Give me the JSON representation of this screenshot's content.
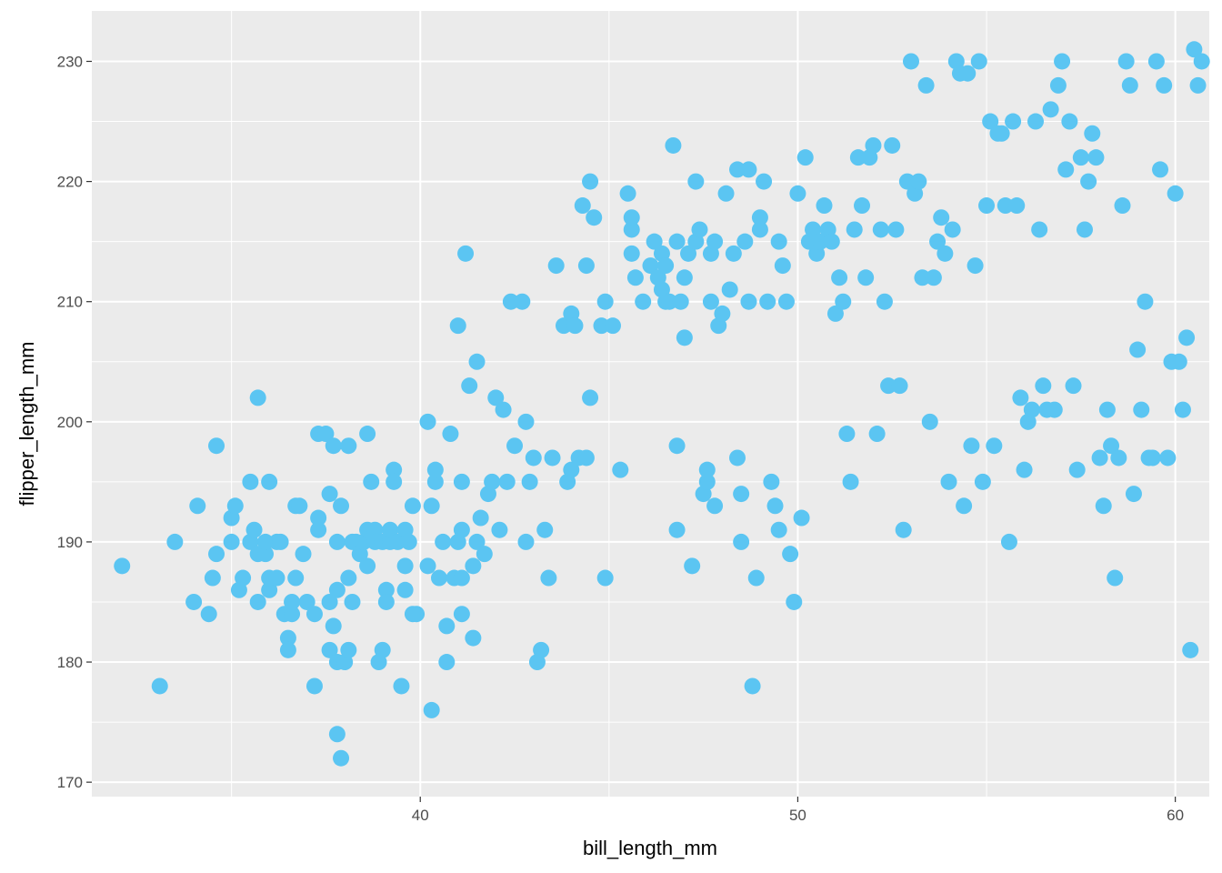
{
  "chart_data": {
    "type": "scatter",
    "xlabel": "bill_length_mm",
    "ylabel": "flipper_length_mm",
    "xlim": [
      31.3,
      60.9
    ],
    "ylim": [
      168.8,
      234.2
    ],
    "x_ticks": [
      40,
      50,
      60
    ],
    "y_ticks": [
      170,
      180,
      190,
      200,
      210,
      220,
      230
    ],
    "grid": true,
    "point_color": "#5BC5F2",
    "panel_color": "#EBEBEB",
    "points": [
      [
        32.1,
        188
      ],
      [
        33.1,
        178
      ],
      [
        33.5,
        190
      ],
      [
        34.0,
        185
      ],
      [
        34.1,
        193
      ],
      [
        34.4,
        184
      ],
      [
        34.5,
        187
      ],
      [
        34.6,
        189
      ],
      [
        34.6,
        198
      ],
      [
        35.0,
        190
      ],
      [
        35.0,
        192
      ],
      [
        35.1,
        193
      ],
      [
        35.2,
        186
      ],
      [
        35.3,
        187
      ],
      [
        35.5,
        190
      ],
      [
        35.5,
        195
      ],
      [
        35.6,
        191
      ],
      [
        35.7,
        189
      ],
      [
        35.7,
        185
      ],
      [
        35.7,
        202
      ],
      [
        35.9,
        189
      ],
      [
        35.9,
        190
      ],
      [
        36.0,
        186
      ],
      [
        36.0,
        187
      ],
      [
        36.0,
        195
      ],
      [
        36.2,
        187
      ],
      [
        36.2,
        190
      ],
      [
        36.3,
        190
      ],
      [
        36.4,
        184
      ],
      [
        36.5,
        182
      ],
      [
        36.5,
        181
      ],
      [
        36.6,
        184
      ],
      [
        36.6,
        185
      ],
      [
        36.7,
        187
      ],
      [
        36.7,
        193
      ],
      [
        36.8,
        193
      ],
      [
        36.9,
        189
      ],
      [
        37.0,
        185
      ],
      [
        37.2,
        184
      ],
      [
        37.2,
        178
      ],
      [
        37.3,
        192
      ],
      [
        37.3,
        191
      ],
      [
        37.3,
        199
      ],
      [
        37.5,
        199
      ],
      [
        37.6,
        185
      ],
      [
        37.6,
        181
      ],
      [
        37.6,
        194
      ],
      [
        37.7,
        183
      ],
      [
        37.7,
        198
      ],
      [
        37.8,
        180
      ],
      [
        37.8,
        174
      ],
      [
        37.8,
        190
      ],
      [
        37.8,
        186
      ],
      [
        37.9,
        172
      ],
      [
        37.9,
        193
      ],
      [
        38.0,
        180
      ],
      [
        38.1,
        181
      ],
      [
        38.1,
        187
      ],
      [
        38.1,
        198
      ],
      [
        38.2,
        190
      ],
      [
        38.2,
        185
      ],
      [
        38.3,
        190
      ],
      [
        38.4,
        189
      ],
      [
        38.5,
        190
      ],
      [
        38.6,
        188
      ],
      [
        38.6,
        199
      ],
      [
        38.6,
        191
      ],
      [
        38.7,
        195
      ],
      [
        38.8,
        191
      ],
      [
        38.8,
        190
      ],
      [
        38.9,
        180
      ],
      [
        39.0,
        190
      ],
      [
        39.0,
        181
      ],
      [
        39.1,
        186
      ],
      [
        39.1,
        185
      ],
      [
        39.2,
        190
      ],
      [
        39.2,
        191
      ],
      [
        39.3,
        196
      ],
      [
        39.3,
        195
      ],
      [
        39.4,
        190
      ],
      [
        39.5,
        178
      ],
      [
        39.6,
        188
      ],
      [
        39.6,
        186
      ],
      [
        39.6,
        191
      ],
      [
        39.7,
        190
      ],
      [
        39.8,
        193
      ],
      [
        39.8,
        184
      ],
      [
        39.9,
        184
      ],
      [
        40.2,
        188
      ],
      [
        40.2,
        200
      ],
      [
        40.3,
        176
      ],
      [
        40.3,
        193
      ],
      [
        40.4,
        195
      ],
      [
        40.4,
        196
      ],
      [
        40.5,
        187
      ],
      [
        40.6,
        190
      ],
      [
        40.7,
        180
      ],
      [
        40.7,
        183
      ],
      [
        40.8,
        199
      ],
      [
        40.9,
        187
      ],
      [
        41.0,
        208
      ],
      [
        41.0,
        190
      ],
      [
        41.1,
        195
      ],
      [
        41.1,
        191
      ],
      [
        41.1,
        184
      ],
      [
        41.1,
        187
      ],
      [
        41.2,
        214
      ],
      [
        41.3,
        203
      ],
      [
        41.4,
        182
      ],
      [
        41.4,
        188
      ],
      [
        41.5,
        205
      ],
      [
        41.5,
        190
      ],
      [
        41.6,
        192
      ],
      [
        41.7,
        189
      ],
      [
        41.8,
        194
      ],
      [
        41.9,
        195
      ],
      [
        42.0,
        202
      ],
      [
        42.1,
        191
      ],
      [
        42.2,
        201
      ],
      [
        42.3,
        195
      ],
      [
        42.4,
        210
      ],
      [
        42.5,
        198
      ],
      [
        42.7,
        210
      ],
      [
        42.8,
        190
      ],
      [
        42.8,
        200
      ],
      [
        42.9,
        195
      ],
      [
        43.0,
        197
      ],
      [
        43.1,
        180
      ],
      [
        43.2,
        181
      ],
      [
        43.3,
        191
      ],
      [
        43.4,
        187
      ],
      [
        43.5,
        197
      ],
      [
        43.6,
        213
      ],
      [
        43.8,
        208
      ],
      [
        43.9,
        195
      ],
      [
        44.0,
        196
      ],
      [
        44.0,
        209
      ],
      [
        44.1,
        208
      ],
      [
        44.2,
        197
      ],
      [
        44.3,
        218
      ],
      [
        44.4,
        197
      ],
      [
        44.4,
        213
      ],
      [
        44.5,
        220
      ],
      [
        44.5,
        202
      ],
      [
        44.6,
        217
      ],
      [
        44.8,
        208
      ],
      [
        44.9,
        210
      ],
      [
        44.9,
        187
      ],
      [
        45.1,
        208
      ],
      [
        45.3,
        196
      ],
      [
        45.5,
        219
      ],
      [
        45.6,
        216
      ],
      [
        45.6,
        217
      ],
      [
        45.6,
        214
      ],
      [
        45.7,
        212
      ],
      [
        45.9,
        210
      ],
      [
        46.1,
        213
      ],
      [
        46.2,
        215
      ],
      [
        46.3,
        212
      ],
      [
        46.4,
        211
      ],
      [
        46.4,
        214
      ],
      [
        46.5,
        210
      ],
      [
        46.5,
        213
      ],
      [
        46.6,
        210
      ],
      [
        46.7,
        223
      ],
      [
        46.8,
        198
      ],
      [
        46.8,
        191
      ],
      [
        46.8,
        215
      ],
      [
        46.9,
        210
      ],
      [
        47.0,
        212
      ],
      [
        47.0,
        207
      ],
      [
        47.1,
        214
      ],
      [
        47.2,
        188
      ],
      [
        47.3,
        220
      ],
      [
        47.3,
        215
      ],
      [
        47.4,
        216
      ],
      [
        47.5,
        194
      ],
      [
        47.6,
        195
      ],
      [
        47.6,
        196
      ],
      [
        47.7,
        214
      ],
      [
        47.7,
        210
      ],
      [
        47.8,
        215
      ],
      [
        47.8,
        193
      ],
      [
        47.9,
        208
      ],
      [
        48.0,
        209
      ],
      [
        48.1,
        219
      ],
      [
        48.2,
        211
      ],
      [
        48.3,
        214
      ],
      [
        48.4,
        197
      ],
      [
        48.4,
        221
      ],
      [
        48.5,
        194
      ],
      [
        48.5,
        190
      ],
      [
        48.6,
        215
      ],
      [
        48.7,
        221
      ],
      [
        48.7,
        210
      ],
      [
        48.8,
        178
      ],
      [
        48.9,
        187
      ],
      [
        49.0,
        216
      ],
      [
        49.0,
        217
      ],
      [
        49.1,
        220
      ],
      [
        49.2,
        210
      ],
      [
        49.3,
        195
      ],
      [
        49.4,
        193
      ],
      [
        49.5,
        215
      ],
      [
        49.5,
        191
      ],
      [
        49.6,
        213
      ],
      [
        49.7,
        210
      ],
      [
        49.8,
        189
      ],
      [
        49.9,
        185
      ],
      [
        50.0,
        219
      ],
      [
        50.1,
        192
      ],
      [
        50.2,
        222
      ],
      [
        50.3,
        215
      ],
      [
        50.4,
        216
      ],
      [
        50.5,
        214
      ],
      [
        50.6,
        215
      ],
      [
        50.7,
        218
      ],
      [
        50.8,
        216
      ],
      [
        50.9,
        215
      ],
      [
        51.0,
        209
      ],
      [
        51.1,
        212
      ],
      [
        51.2,
        210
      ],
      [
        51.3,
        199
      ],
      [
        51.4,
        195
      ],
      [
        51.5,
        216
      ],
      [
        51.6,
        222
      ],
      [
        51.7,
        218
      ],
      [
        51.8,
        212
      ],
      [
        51.9,
        222
      ],
      [
        52.0,
        223
      ],
      [
        52.1,
        199
      ],
      [
        52.2,
        216
      ],
      [
        52.3,
        210
      ],
      [
        52.4,
        203
      ],
      [
        52.5,
        223
      ],
      [
        52.6,
        216
      ],
      [
        52.7,
        203
      ],
      [
        52.8,
        191
      ],
      [
        52.9,
        220
      ],
      [
        53.0,
        230
      ],
      [
        53.1,
        219
      ],
      [
        53.2,
        220
      ],
      [
        53.3,
        212
      ],
      [
        53.4,
        228
      ],
      [
        53.5,
        200
      ],
      [
        53.6,
        212
      ],
      [
        53.7,
        215
      ],
      [
        53.8,
        217
      ],
      [
        53.9,
        214
      ],
      [
        54.0,
        195
      ],
      [
        54.1,
        216
      ],
      [
        54.2,
        230
      ],
      [
        54.3,
        229
      ],
      [
        54.4,
        193
      ],
      [
        54.5,
        229
      ],
      [
        54.6,
        198
      ],
      [
        54.7,
        213
      ],
      [
        54.8,
        230
      ],
      [
        54.9,
        195
      ],
      [
        55.0,
        218
      ],
      [
        55.1,
        225
      ],
      [
        55.2,
        198
      ],
      [
        55.3,
        224
      ],
      [
        55.4,
        224
      ],
      [
        55.5,
        218
      ],
      [
        55.6,
        190
      ],
      [
        55.7,
        225
      ],
      [
        55.8,
        218
      ],
      [
        55.9,
        202
      ],
      [
        56.0,
        196
      ],
      [
        56.1,
        200
      ],
      [
        56.2,
        201
      ],
      [
        56.3,
        225
      ],
      [
        56.4,
        216
      ],
      [
        56.5,
        203
      ],
      [
        56.6,
        201
      ],
      [
        56.7,
        226
      ],
      [
        56.8,
        201
      ],
      [
        56.9,
        228
      ],
      [
        57.0,
        230
      ],
      [
        57.1,
        221
      ],
      [
        57.2,
        225
      ],
      [
        57.3,
        203
      ],
      [
        57.4,
        196
      ],
      [
        57.5,
        222
      ],
      [
        57.6,
        216
      ],
      [
        57.7,
        220
      ],
      [
        57.8,
        224
      ],
      [
        57.9,
        222
      ],
      [
        58.0,
        197
      ],
      [
        58.1,
        193
      ],
      [
        58.2,
        201
      ],
      [
        58.3,
        198
      ],
      [
        58.4,
        187
      ],
      [
        58.5,
        197
      ],
      [
        58.6,
        218
      ],
      [
        58.7,
        230
      ],
      [
        58.8,
        228
      ],
      [
        58.9,
        194
      ],
      [
        59.0,
        206
      ],
      [
        59.1,
        201
      ],
      [
        59.2,
        210
      ],
      [
        59.3,
        197
      ],
      [
        59.4,
        197
      ],
      [
        59.5,
        230
      ],
      [
        59.6,
        221
      ],
      [
        59.7,
        228
      ],
      [
        59.8,
        197
      ],
      [
        59.9,
        205
      ],
      [
        60.0,
        219
      ],
      [
        60.1,
        205
      ],
      [
        60.2,
        201
      ],
      [
        60.3,
        207
      ],
      [
        60.4,
        181
      ],
      [
        60.5,
        231
      ],
      [
        60.6,
        228
      ],
      [
        60.7,
        230
      ]
    ]
  }
}
